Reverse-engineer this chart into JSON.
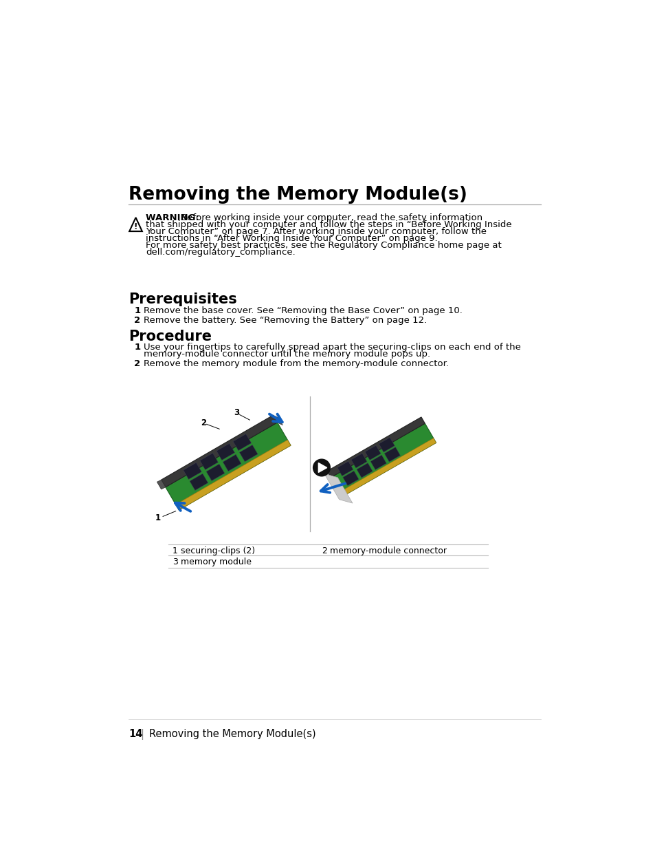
{
  "title": "Removing the Memory Module(s)",
  "bg_color": "#ffffff",
  "title_color": "#000000",
  "title_fontsize": 19,
  "hr_color": "#aaaaaa",
  "warning_line1_bold": "WARNING: ",
  "warning_line1_rest": " Before working inside your computer, read the safety information",
  "warning_lines": [
    "that shipped with your computer and follow the steps in “Before Working Inside",
    "Your Computer” on page 7. After working inside your computer, follow the",
    "instructions in “After Working Inside Your Computer” on page 9.",
    "For more safety best practices, see the Regulatory Compliance home page at",
    "dell.com/regulatory_compliance."
  ],
  "prerequisites_title": "Prerequisites",
  "prerequisites_items": [
    "Remove the base cover. See “Removing the Base Cover” on page 10.",
    "Remove the battery. See “Removing the Battery” on page 12."
  ],
  "procedure_title": "Procedure",
  "procedure_item1_line1": "Use your fingertips to carefully spread apart the securing-clips on each end of the",
  "procedure_item1_line2": "memory-module connector until the memory module pops up.",
  "procedure_item2": "Remove the memory module from the memory-module connector.",
  "table_rows": [
    [
      "1",
      "securing-clips (2)",
      "2",
      "memory-module connector"
    ],
    [
      "3",
      "memory module",
      "",
      ""
    ]
  ],
  "footer_page": "14",
  "footer_text": "Removing the Memory Module(s)",
  "section_fontsize": 15,
  "body_fontsize": 9.5,
  "body_color": "#000000",
  "line_color": "#bbbbbb"
}
